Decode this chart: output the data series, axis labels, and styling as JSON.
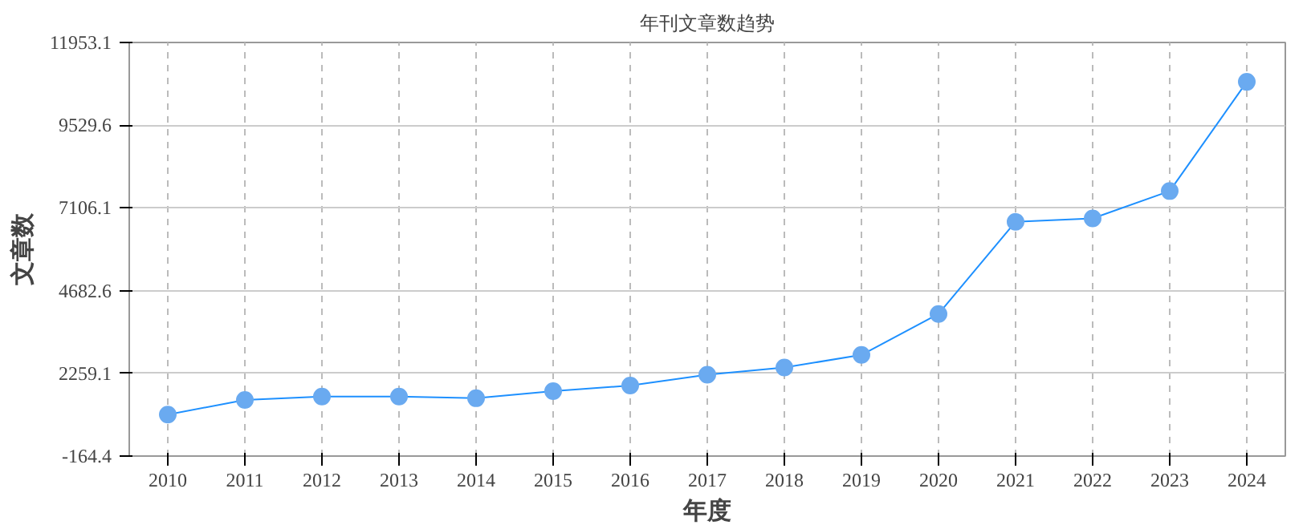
{
  "chart_data": {
    "type": "line",
    "title": "年刊文章数趋势",
    "xlabel": "年度",
    "ylabel": "文章数",
    "categories": [
      "2010",
      "2011",
      "2012",
      "2013",
      "2014",
      "2015",
      "2016",
      "2017",
      "2018",
      "2019",
      "2020",
      "2021",
      "2022",
      "2023",
      "2024"
    ],
    "series": [
      {
        "color": "#1e90ff",
        "values": [
          1050,
          1480,
          1580,
          1580,
          1530,
          1740,
          1900,
          2220,
          2430,
          2800,
          4000,
          6700,
          6800,
          7600,
          10800
        ]
      }
    ],
    "ylim": [
      -164.4,
      11953.1
    ],
    "yticks": [
      -164.4,
      2259.1,
      4682.6,
      7106.1,
      9529.6,
      11953.1
    ],
    "grid": true,
    "marker": "circle",
    "line_style": "solid"
  }
}
